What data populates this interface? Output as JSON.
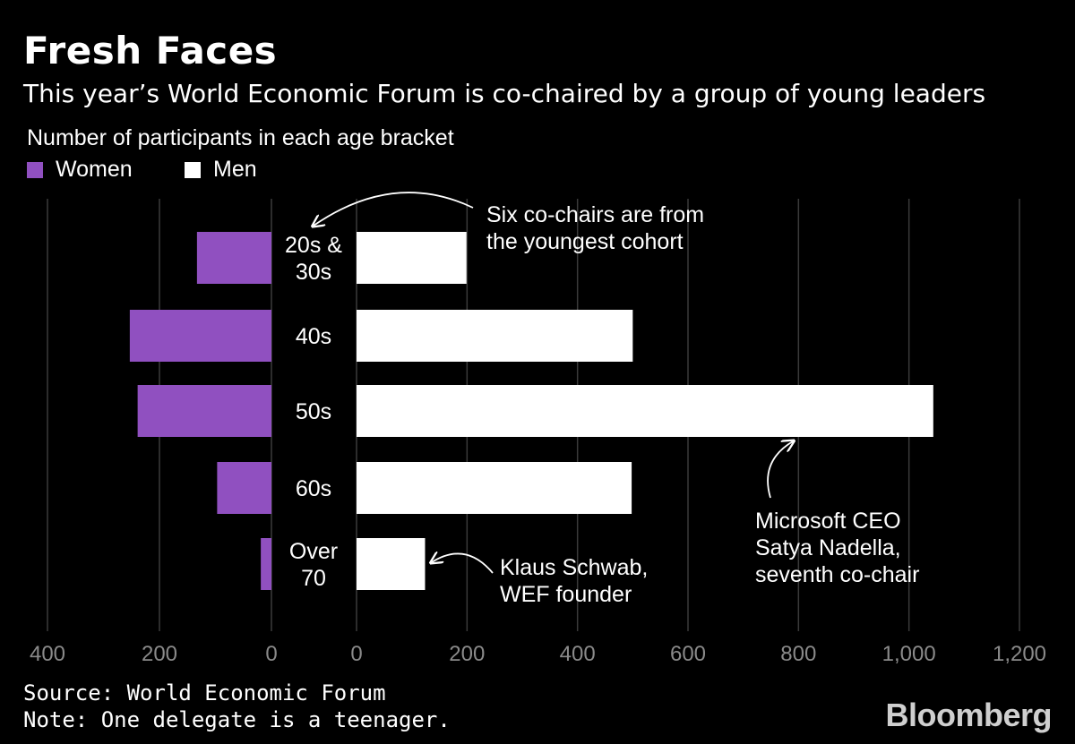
{
  "title": "Fresh Faces",
  "subtitle": "This year’s World Economic Forum is co-chaired by a group of young leaders",
  "footer": {
    "source": "Source: World Economic Forum",
    "note": "Note: One delegate is a teenager.",
    "brand": "Bloomberg"
  },
  "colors": {
    "women": "#9050c0",
    "men": "#ffffff",
    "grid": "#3a3a3a",
    "tick": "#8a8a8a"
  },
  "chart_data": {
    "type": "bar",
    "orientation": "horizontal",
    "layout": "back-to-back",
    "ylabel": "Number of participants in each age bracket",
    "categories": [
      [
        "20s &",
        "30s"
      ],
      [
        "40s"
      ],
      [
        "50s"
      ],
      [
        "60s"
      ],
      [
        "Over",
        "70"
      ]
    ],
    "series": [
      {
        "name": "Women",
        "side": "left",
        "values": [
          133,
          253,
          239,
          97,
          19
        ],
        "xlim": [
          400,
          0
        ],
        "ticks": [
          {
            "v": 400,
            "label": "400"
          },
          {
            "v": 200,
            "label": "200"
          },
          {
            "v": 0,
            "label": "0"
          }
        ]
      },
      {
        "name": "Men",
        "side": "right",
        "values": [
          199,
          500,
          1044,
          498,
          124
        ],
        "xlim": [
          0,
          1200
        ],
        "ticks": [
          {
            "v": 0,
            "label": "0"
          },
          {
            "v": 200,
            "label": "200"
          },
          {
            "v": 400,
            "label": "400"
          },
          {
            "v": 600,
            "label": "600"
          },
          {
            "v": 800,
            "label": "800"
          },
          {
            "v": 1000,
            "label": "1,000"
          },
          {
            "v": 1200,
            "label": "1,200"
          }
        ]
      }
    ],
    "grid": true,
    "legend": "top-left",
    "annotations": [
      {
        "lines": [
          "Six co-chairs are from",
          "the youngest cohort"
        ],
        "target": "20s & 30s"
      },
      {
        "lines": [
          "Microsoft CEO",
          "Satya Nadella,",
          "seventh co-chair"
        ],
        "target": "50s men"
      },
      {
        "lines": [
          "Klaus Schwab,",
          "WEF founder"
        ],
        "target": "Over 70 men"
      }
    ]
  }
}
